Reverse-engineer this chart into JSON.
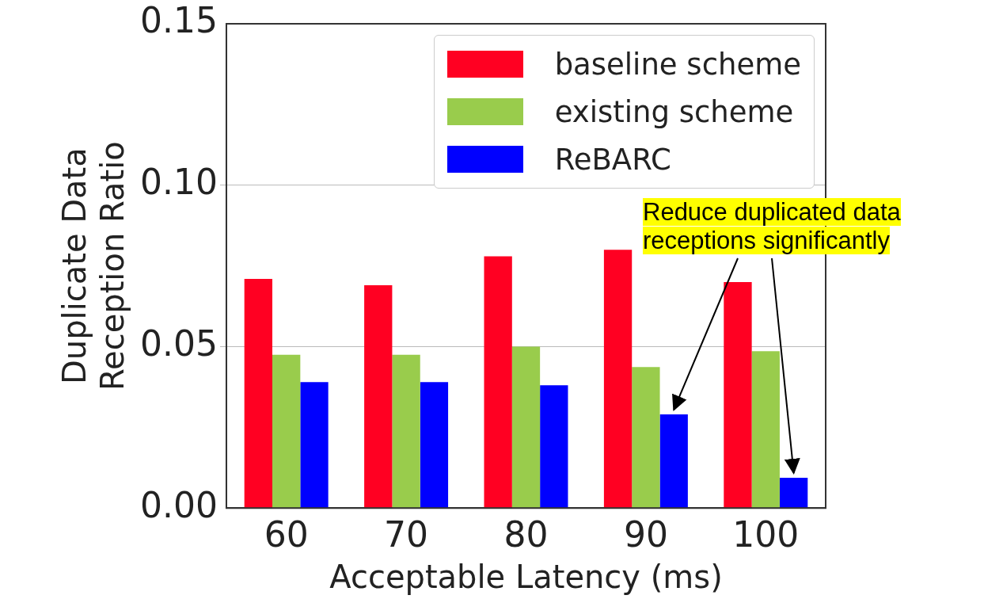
{
  "chart_data": {
    "type": "bar",
    "xlabel": "Acceptable Latency (ms)",
    "ylabel": "Duplicate Data\nReception Ratio",
    "categories": [
      "60",
      "70",
      "80",
      "90",
      "100"
    ],
    "series": [
      {
        "name": "baseline scheme",
        "color": "#ff0022",
        "values": [
          0.071,
          0.069,
          0.078,
          0.08,
          0.07
        ]
      },
      {
        "name": "existing scheme",
        "color": "#99cc4c",
        "values": [
          0.0475,
          0.0475,
          0.05,
          0.0437,
          0.0486
        ]
      },
      {
        "name": "ReBARC",
        "color": "#0000ff",
        "values": [
          0.039,
          0.039,
          0.038,
          0.029,
          0.0094
        ]
      }
    ],
    "ylim": [
      0,
      0.15
    ],
    "yticks": [
      {
        "value": 0,
        "label": "0.00"
      },
      {
        "value": 0.05,
        "label": "0.05"
      },
      {
        "value": 0.1,
        "label": "0.10"
      },
      {
        "value": 0.15,
        "label": "0.15"
      }
    ],
    "grid": "y",
    "legend": "top right",
    "annotations": [
      "Reduce duplicated data receptions significantly"
    ]
  }
}
